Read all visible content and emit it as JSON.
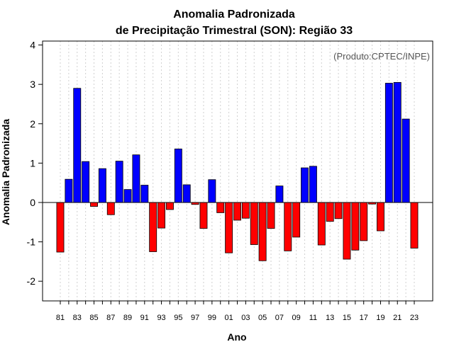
{
  "chart_data": {
    "type": "bar",
    "title_line1": "Anomalia Padronizada",
    "title_line2": "de Precipitação Trimestral (SON): Região 33",
    "xlabel": "Ano",
    "ylabel": "Anomalia Padronizada",
    "credit": "(Produto:CPTEC/INPE)",
    "ylim": [
      -2.5,
      4.1
    ],
    "yticks": [
      "4",
      "3",
      "2",
      "1",
      "0",
      "-1",
      "-2"
    ],
    "ytick_values": [
      4,
      3,
      2,
      1,
      0,
      -1,
      -2
    ],
    "x_tick_labels": [
      "81",
      "83",
      "85",
      "87",
      "89",
      "91",
      "93",
      "95",
      "97",
      "99",
      "01",
      "03",
      "05",
      "07",
      "09",
      "11",
      "13",
      "15",
      "17",
      "19",
      "21",
      "23"
    ],
    "categories": [
      "1981",
      "1982",
      "1983",
      "1984",
      "1985",
      "1986",
      "1987",
      "1988",
      "1989",
      "1990",
      "1991",
      "1992",
      "1993",
      "1994",
      "1995",
      "1996",
      "1997",
      "1998",
      "1999",
      "2000",
      "2001",
      "2002",
      "2003",
      "2004",
      "2005",
      "2006",
      "2007",
      "2008",
      "2009",
      "2010",
      "2011",
      "2012",
      "2013",
      "2014",
      "2015",
      "2016",
      "2017",
      "2018",
      "2019",
      "2020",
      "2021",
      "2022",
      "2023"
    ],
    "values": [
      -1.26,
      0.59,
      2.9,
      1.04,
      -0.1,
      0.86,
      -0.31,
      1.05,
      0.33,
      1.21,
      0.44,
      -1.25,
      -0.65,
      -0.18,
      1.36,
      0.45,
      -0.05,
      -0.66,
      0.58,
      -0.26,
      -1.28,
      -0.45,
      -0.4,
      -1.07,
      -1.48,
      -0.66,
      0.42,
      -1.23,
      -0.88,
      0.88,
      0.92,
      -1.08,
      -0.48,
      -0.41,
      -1.44,
      -1.21,
      -0.97,
      -0.04,
      -0.72,
      3.03,
      3.05,
      2.12,
      -1.16
    ],
    "colors": {
      "positive": "#0000ff",
      "negative": "#ff0000",
      "grid": "#d0d0d0",
      "axis": "#000000"
    }
  }
}
